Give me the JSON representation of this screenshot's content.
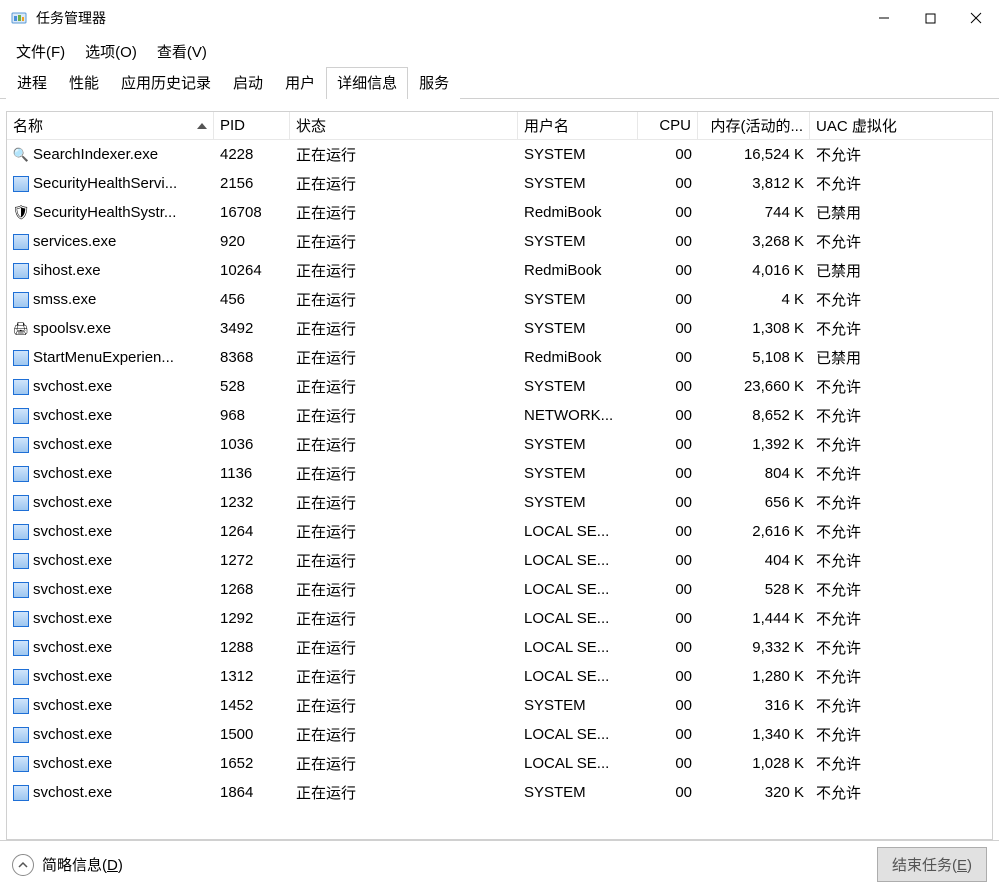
{
  "window": {
    "title": "任务管理器"
  },
  "menu": {
    "file": "文件(F)",
    "options": "选项(O)",
    "view": "查看(V)"
  },
  "tabs": {
    "processes": "进程",
    "performance": "性能",
    "history": "应用历史记录",
    "startup": "启动",
    "users": "用户",
    "details": "详细信息",
    "services": "服务",
    "active": "details"
  },
  "columns": {
    "name": "名称",
    "pid": "PID",
    "status": "状态",
    "user": "用户名",
    "cpu": "CPU",
    "memory": "内存(活动的...",
    "uac": "UAC 虚拟化"
  },
  "status_running": "正在运行",
  "uac_not_allowed": "不允许",
  "uac_disabled": "已禁用",
  "processes": [
    {
      "icon": "search",
      "name": "SearchIndexer.exe",
      "pid": "4228",
      "user": "SYSTEM",
      "cpu": "00",
      "mem": "16,524 K",
      "uac": "不允许"
    },
    {
      "icon": "app",
      "name": "SecurityHealthServi...",
      "pid": "2156",
      "user": "SYSTEM",
      "cpu": "00",
      "mem": "3,812 K",
      "uac": "不允许"
    },
    {
      "icon": "shield",
      "name": "SecurityHealthSystr...",
      "pid": "16708",
      "user": "RedmiBook",
      "cpu": "00",
      "mem": "744 K",
      "uac": "已禁用"
    },
    {
      "icon": "app",
      "name": "services.exe",
      "pid": "920",
      "user": "SYSTEM",
      "cpu": "00",
      "mem": "3,268 K",
      "uac": "不允许"
    },
    {
      "icon": "app",
      "name": "sihost.exe",
      "pid": "10264",
      "user": "RedmiBook",
      "cpu": "00",
      "mem": "4,016 K",
      "uac": "已禁用"
    },
    {
      "icon": "app",
      "name": "smss.exe",
      "pid": "456",
      "user": "SYSTEM",
      "cpu": "00",
      "mem": "4 K",
      "uac": "不允许"
    },
    {
      "icon": "printer",
      "name": "spoolsv.exe",
      "pid": "3492",
      "user": "SYSTEM",
      "cpu": "00",
      "mem": "1,308 K",
      "uac": "不允许"
    },
    {
      "icon": "app",
      "name": "StartMenuExperien...",
      "pid": "8368",
      "user": "RedmiBook",
      "cpu": "00",
      "mem": "5,108 K",
      "uac": "已禁用"
    },
    {
      "icon": "app",
      "name": "svchost.exe",
      "pid": "528",
      "user": "SYSTEM",
      "cpu": "00",
      "mem": "23,660 K",
      "uac": "不允许"
    },
    {
      "icon": "app",
      "name": "svchost.exe",
      "pid": "968",
      "user": "NETWORK...",
      "cpu": "00",
      "mem": "8,652 K",
      "uac": "不允许"
    },
    {
      "icon": "app",
      "name": "svchost.exe",
      "pid": "1036",
      "user": "SYSTEM",
      "cpu": "00",
      "mem": "1,392 K",
      "uac": "不允许"
    },
    {
      "icon": "app",
      "name": "svchost.exe",
      "pid": "1136",
      "user": "SYSTEM",
      "cpu": "00",
      "mem": "804 K",
      "uac": "不允许"
    },
    {
      "icon": "app",
      "name": "svchost.exe",
      "pid": "1232",
      "user": "SYSTEM",
      "cpu": "00",
      "mem": "656 K",
      "uac": "不允许"
    },
    {
      "icon": "app",
      "name": "svchost.exe",
      "pid": "1264",
      "user": "LOCAL SE...",
      "cpu": "00",
      "mem": "2,616 K",
      "uac": "不允许"
    },
    {
      "icon": "app",
      "name": "svchost.exe",
      "pid": "1272",
      "user": "LOCAL SE...",
      "cpu": "00",
      "mem": "404 K",
      "uac": "不允许"
    },
    {
      "icon": "app",
      "name": "svchost.exe",
      "pid": "1268",
      "user": "LOCAL SE...",
      "cpu": "00",
      "mem": "528 K",
      "uac": "不允许"
    },
    {
      "icon": "app",
      "name": "svchost.exe",
      "pid": "1292",
      "user": "LOCAL SE...",
      "cpu": "00",
      "mem": "1,444 K",
      "uac": "不允许"
    },
    {
      "icon": "app",
      "name": "svchost.exe",
      "pid": "1288",
      "user": "LOCAL SE...",
      "cpu": "00",
      "mem": "9,332 K",
      "uac": "不允许"
    },
    {
      "icon": "app",
      "name": "svchost.exe",
      "pid": "1312",
      "user": "LOCAL SE...",
      "cpu": "00",
      "mem": "1,280 K",
      "uac": "不允许"
    },
    {
      "icon": "app",
      "name": "svchost.exe",
      "pid": "1452",
      "user": "SYSTEM",
      "cpu": "00",
      "mem": "316 K",
      "uac": "不允许"
    },
    {
      "icon": "app",
      "name": "svchost.exe",
      "pid": "1500",
      "user": "LOCAL SE...",
      "cpu": "00",
      "mem": "1,340 K",
      "uac": "不允许"
    },
    {
      "icon": "app",
      "name": "svchost.exe",
      "pid": "1652",
      "user": "LOCAL SE...",
      "cpu": "00",
      "mem": "1,028 K",
      "uac": "不允许"
    },
    {
      "icon": "app",
      "name": "svchost.exe",
      "pid": "1864",
      "user": "SYSTEM",
      "cpu": "00",
      "mem": "320 K",
      "uac": "不允许"
    }
  ],
  "footer": {
    "fewer_label_pre": "简略信息(",
    "fewer_key": "D",
    "fewer_label_post": ")",
    "end_task_pre": "结束任务(",
    "end_task_key": "E",
    "end_task_post": ")"
  }
}
